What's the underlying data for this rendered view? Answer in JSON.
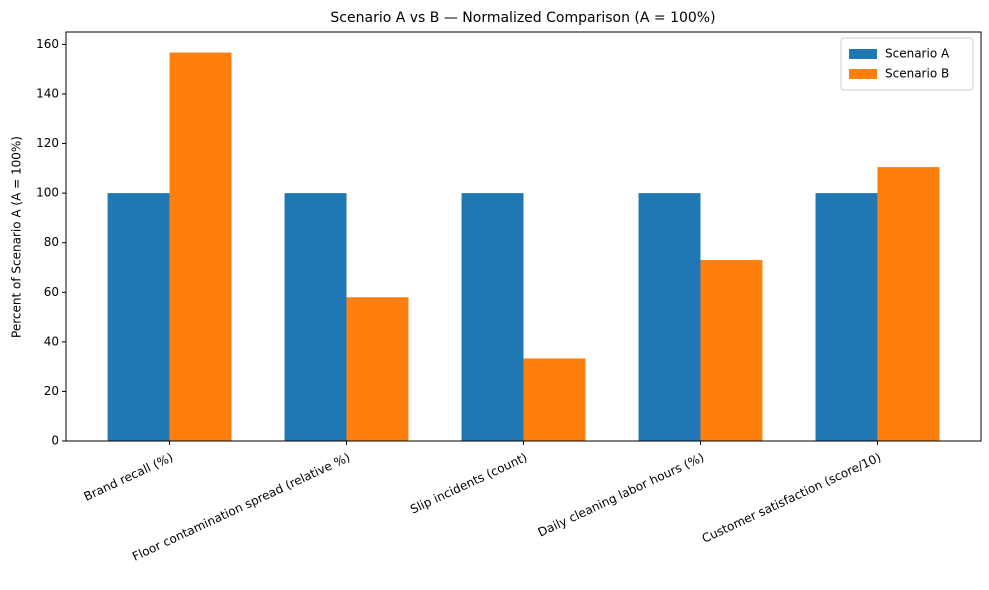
{
  "chart_data": {
    "type": "bar",
    "title": "Scenario A vs B — Normalized Comparison (A = 100%)",
    "y_label": "Percent of Scenario A (A = 100%)",
    "categories": [
      "Brand recall (%)",
      "Floor contamination spread (relative %)",
      "Slip incidents (count)",
      "Daily cleaning labor hours (%)",
      "Customer satisfaction (score/10)"
    ],
    "series": [
      {
        "name": "Scenario A",
        "color": "#1f77b4",
        "values": [
          100,
          100,
          100,
          100,
          100
        ]
      },
      {
        "name": "Scenario B",
        "color": "#ff7f0e",
        "values": [
          156.7,
          58,
          33.3,
          73,
          110.5
        ]
      }
    ],
    "ylim": [
      0,
      165
    ],
    "yticks": [
      0,
      20,
      40,
      60,
      80,
      100,
      120,
      140,
      160
    ],
    "grid": false,
    "legend": "upper right"
  }
}
